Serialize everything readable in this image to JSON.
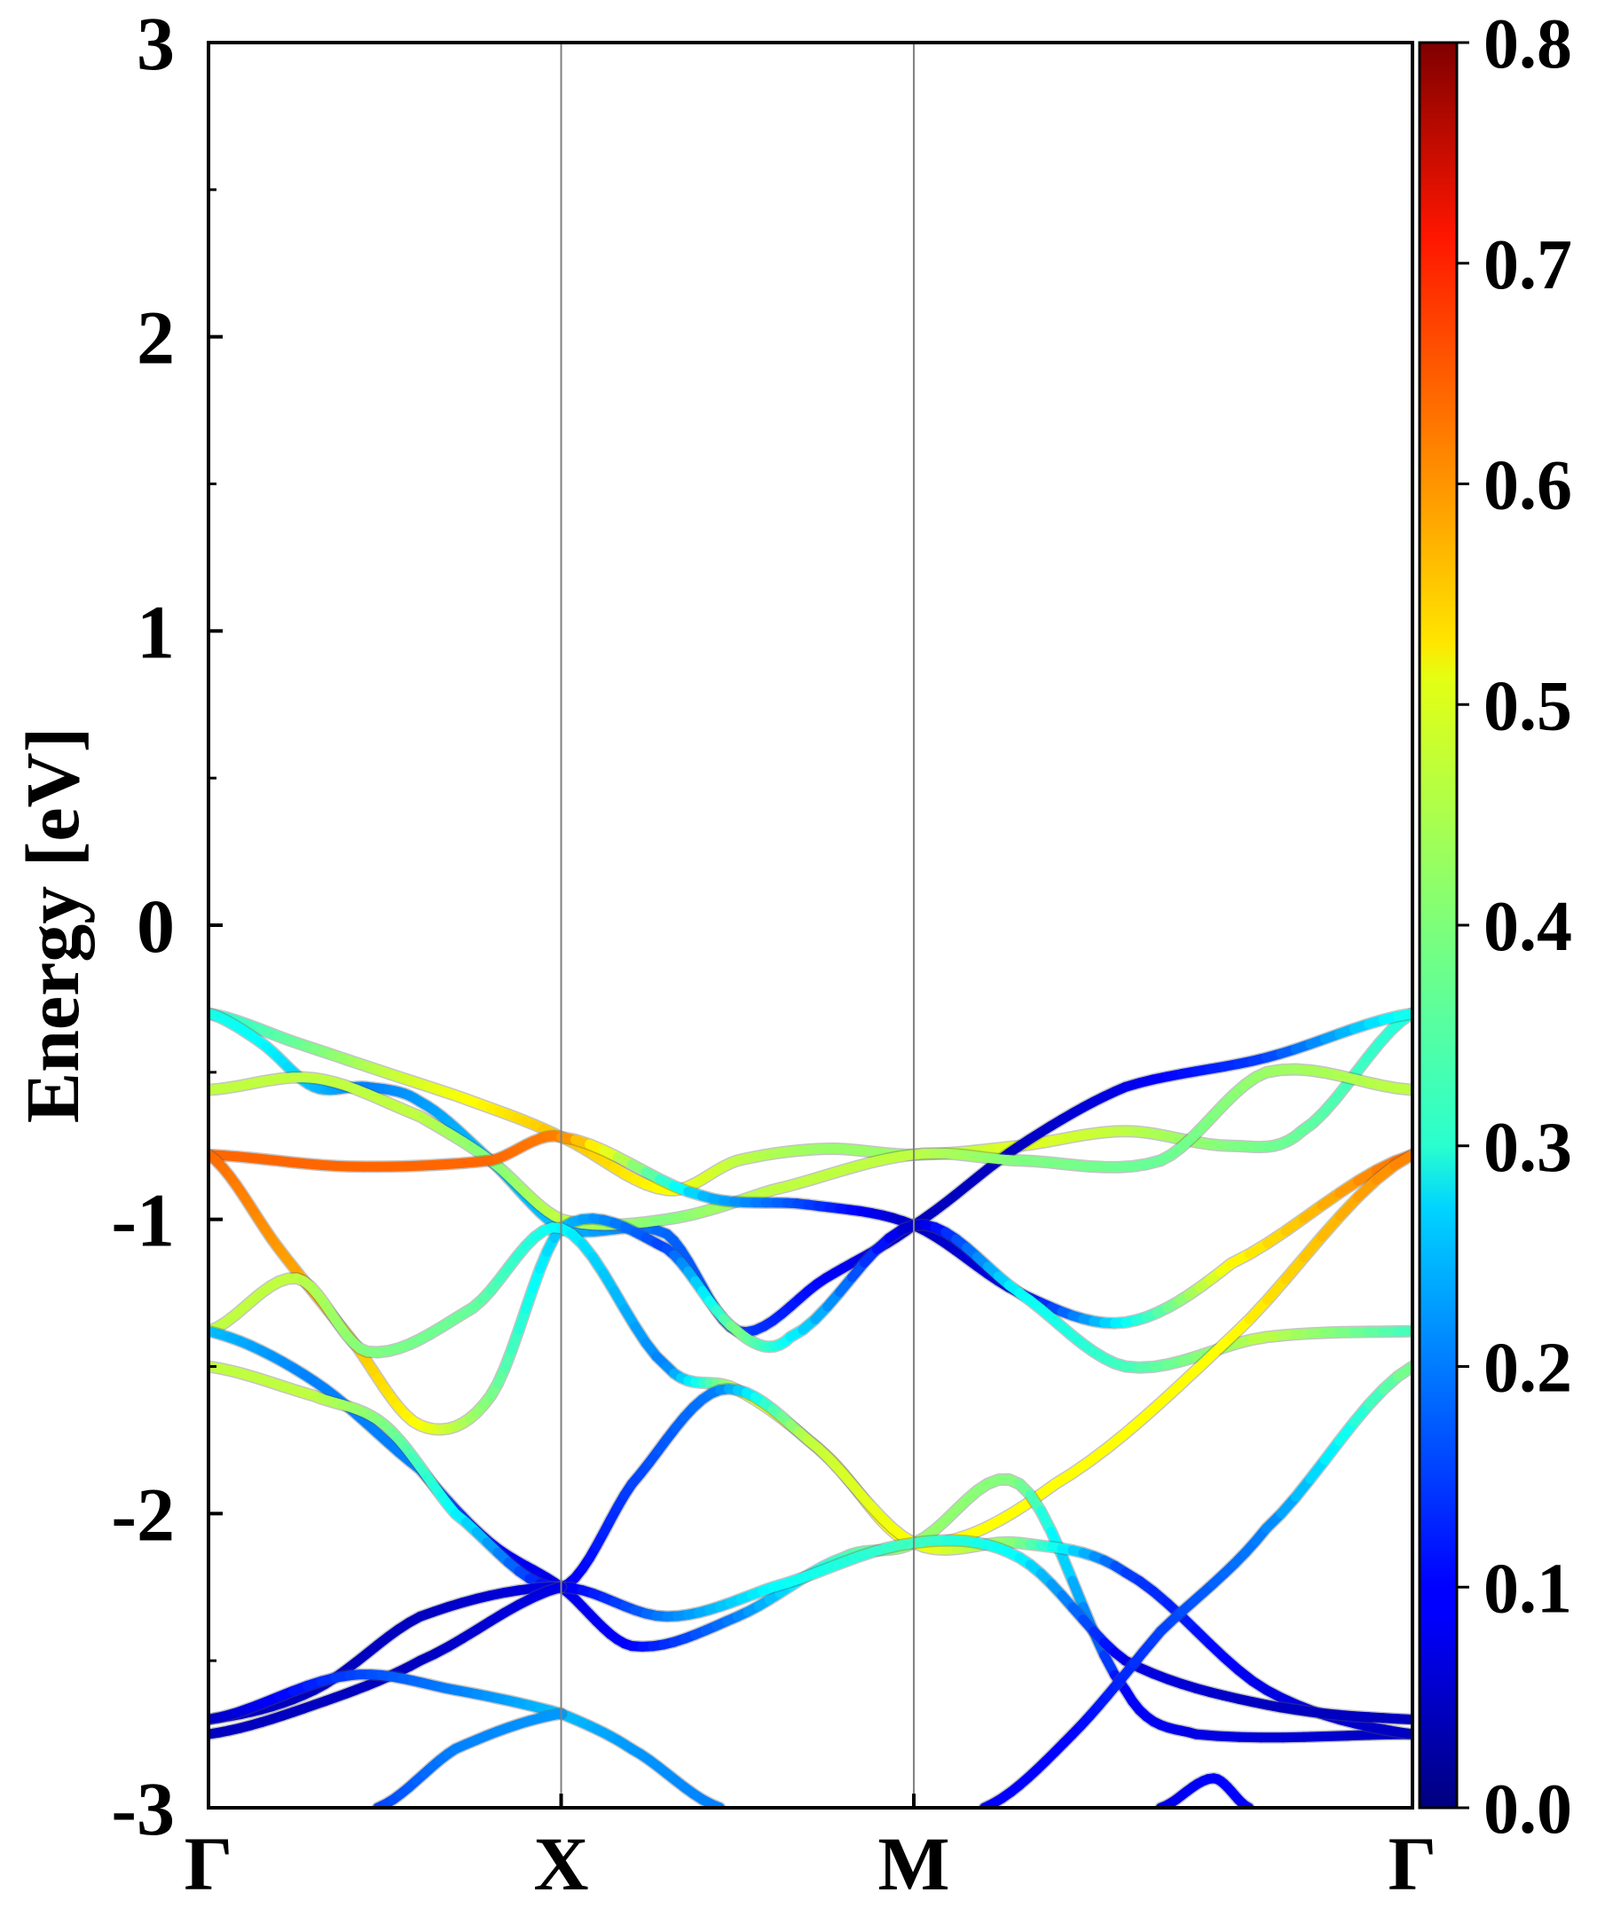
{
  "chart_data": {
    "type": "line",
    "title": "",
    "xlabel": "",
    "ylabel": "Energy [eV]",
    "ylim": [
      -3,
      3
    ],
    "xlim": [
      0,
      3.414
    ],
    "y_ticks": [
      3,
      2,
      1,
      0,
      -1,
      -2,
      -3
    ],
    "y_tick_labels": [
      "3",
      "2",
      "1",
      "0",
      "-1",
      "-2",
      "-3"
    ],
    "x_ticks": [
      {
        "label": "Γ",
        "x": 0
      },
      {
        "label": "X",
        "x": 1
      },
      {
        "label": "M",
        "x": 2
      },
      {
        "label": "Γ",
        "x": 3.414
      }
    ],
    "grid": "vertical lines at high-symmetry points",
    "colorbar": {
      "colormap": "jet",
      "range": [
        0,
        0.8
      ],
      "ticks": [
        "0.0",
        "0.1",
        "0.2",
        "0.3",
        "0.4",
        "0.5",
        "0.6",
        "0.7",
        "0.8"
      ],
      "tick_values": [
        0,
        0.1,
        0.2,
        0.3,
        0.4,
        0.5,
        0.6,
        0.7,
        0.8
      ],
      "placement": "right"
    },
    "series": [
      {
        "points": [
          [
            0,
            -0.3,
            0.32
          ],
          [
            0.25,
            -0.4,
            0.38
          ],
          [
            0.5,
            -0.5,
            0.45
          ],
          [
            0.75,
            -0.6,
            0.5
          ],
          [
            1,
            -0.72,
            0.55
          ],
          [
            1.3,
            -0.9,
            0.5
          ],
          [
            1.5,
            -0.8,
            0.45
          ],
          [
            1.75,
            -0.76,
            0.42
          ],
          [
            2,
            -0.78,
            0.42
          ],
          [
            2.3,
            -0.75,
            0.48
          ],
          [
            2.6,
            -0.7,
            0.45
          ],
          [
            2.9,
            -0.75,
            0.4
          ],
          [
            3.1,
            -0.7,
            0.38
          ],
          [
            3.414,
            -0.3,
            0.32
          ]
        ]
      },
      {
        "points": [
          [
            0,
            -0.3,
            0.32
          ],
          [
            0.15,
            -0.4,
            0.3
          ],
          [
            0.3,
            -0.55,
            0.25
          ],
          [
            0.45,
            -0.55,
            0.2
          ],
          [
            0.6,
            -0.6,
            0.22
          ],
          [
            0.8,
            -0.8,
            0.25
          ],
          [
            1,
            -1.03,
            0.25
          ],
          [
            1.3,
            -1.05,
            0.18
          ],
          [
            1.5,
            -1.38,
            0.15
          ],
          [
            1.75,
            -1.2,
            0.1
          ],
          [
            2,
            -1.02,
            0.05
          ],
          [
            2.3,
            -0.75,
            0.05
          ],
          [
            2.6,
            -0.55,
            0.08
          ],
          [
            3.0,
            -0.45,
            0.15
          ],
          [
            3.414,
            -0.3,
            0.32
          ]
        ]
      },
      {
        "points": [
          [
            0,
            -0.56,
            0.45
          ],
          [
            0.3,
            -0.52,
            0.45
          ],
          [
            0.6,
            -0.65,
            0.45
          ],
          [
            0.8,
            -0.8,
            0.4
          ],
          [
            1,
            -1.0,
            0.45
          ],
          [
            1.3,
            -1.0,
            0.4
          ],
          [
            1.6,
            -0.9,
            0.45
          ],
          [
            2,
            -0.78,
            0.45
          ],
          [
            2.3,
            -0.8,
            0.4
          ],
          [
            2.7,
            -0.8,
            0.38
          ],
          [
            3.0,
            -0.5,
            0.42
          ],
          [
            3.414,
            -0.56,
            0.45
          ]
        ]
      },
      {
        "points": [
          [
            0,
            -0.78,
            0.62
          ],
          [
            0.4,
            -0.82,
            0.62
          ],
          [
            0.8,
            -0.8,
            0.62
          ],
          [
            1,
            -0.72,
            0.6
          ],
          [
            1.4,
            -0.92,
            0.25
          ],
          [
            1.7,
            -0.95,
            0.15
          ],
          [
            2,
            -1.02,
            0.05
          ],
          [
            2.3,
            -1.25,
            0.08
          ],
          [
            2.6,
            -1.35,
            0.3
          ],
          [
            2.9,
            -1.15,
            0.5
          ],
          [
            3.414,
            -0.78,
            0.62
          ]
        ]
      },
      {
        "points": [
          [
            0,
            -0.78,
            0.62
          ],
          [
            0.2,
            -1.1,
            0.58
          ],
          [
            0.4,
            -1.4,
            0.55
          ],
          [
            0.6,
            -1.7,
            0.5
          ],
          [
            0.8,
            -1.6,
            0.4
          ],
          [
            1,
            -1.03,
            0.25
          ],
          [
            1.3,
            -1.1,
            0.15
          ],
          [
            1.5,
            -1.38,
            0.4
          ],
          [
            1.65,
            -1.4,
            0.3
          ],
          [
            2,
            -1.02,
            0.05
          ],
          [
            2.3,
            -1.25,
            0.3
          ],
          [
            2.6,
            -1.5,
            0.35
          ],
          [
            3.0,
            -1.4,
            0.45
          ],
          [
            3.414,
            -1.38,
            0.35
          ]
        ]
      },
      {
        "points": [
          [
            0,
            -1.38,
            0.45
          ],
          [
            0.25,
            -1.2,
            0.45
          ],
          [
            0.45,
            -1.45,
            0.4
          ],
          [
            0.75,
            -1.3,
            0.38
          ],
          [
            1,
            -1.03,
            0.3
          ],
          [
            1.3,
            -1.5,
            0.2
          ],
          [
            1.5,
            -1.58,
            0.45
          ],
          [
            1.75,
            -1.8,
            0.5
          ],
          [
            2,
            -2.1,
            0.5
          ],
          [
            2.4,
            -1.9,
            0.5
          ],
          [
            2.9,
            -1.4,
            0.5
          ],
          [
            3.414,
            -0.78,
            0.6
          ]
        ]
      },
      {
        "points": [
          [
            0,
            -1.38,
            0.25
          ],
          [
            0.3,
            -1.55,
            0.2
          ],
          [
            0.6,
            -1.85,
            0.2
          ],
          [
            0.8,
            -2.1,
            0.1
          ],
          [
            1,
            -2.25,
            0.08
          ],
          [
            1.2,
            -2.45,
            0.1
          ],
          [
            1.5,
            -2.35,
            0.2
          ],
          [
            1.8,
            -2.15,
            0.35
          ],
          [
            2,
            -2.1,
            0.42
          ],
          [
            2.3,
            -1.9,
            0.4
          ],
          [
            2.6,
            -2.6,
            0.1
          ],
          [
            2.8,
            -2.75,
            0.08
          ],
          [
            3.414,
            -2.75,
            0.05
          ]
        ]
      },
      {
        "points": [
          [
            0,
            -1.5,
            0.45
          ],
          [
            0.3,
            -1.6,
            0.45
          ],
          [
            0.5,
            -1.7,
            0.4
          ],
          [
            0.7,
            -2.0,
            0.3
          ],
          [
            1,
            -2.25,
            0.08
          ],
          [
            1.2,
            -1.9,
            0.15
          ],
          [
            1.45,
            -1.58,
            0.2
          ],
          [
            1.7,
            -1.75,
            0.45
          ],
          [
            2,
            -2.1,
            0.5
          ],
          [
            2.3,
            -2.1,
            0.4
          ],
          [
            2.6,
            -2.2,
            0.15
          ],
          [
            3.0,
            -2.6,
            0.08
          ],
          [
            3.414,
            -2.75,
            0.05
          ]
        ]
      },
      {
        "points": [
          [
            0,
            -2.7,
            0.05
          ],
          [
            0.3,
            -2.6,
            0.05
          ],
          [
            0.6,
            -2.35,
            0.05
          ],
          [
            1,
            -2.25,
            0.08
          ],
          [
            1.3,
            -2.35,
            0.2
          ],
          [
            1.6,
            -2.25,
            0.3
          ],
          [
            2,
            -2.1,
            0.35
          ],
          [
            2.3,
            -2.15,
            0.3
          ],
          [
            2.6,
            -2.5,
            0.08
          ],
          [
            3.0,
            -2.65,
            0.05
          ],
          [
            3.414,
            -2.7,
            0.05
          ]
        ]
      },
      {
        "points": [
          [
            0,
            -2.75,
            0.05
          ],
          [
            0.3,
            -2.65,
            0.05
          ],
          [
            0.6,
            -2.5,
            0.05
          ],
          [
            1,
            -2.25,
            0.08
          ]
        ]
      },
      {
        "points": [
          [
            0,
            -2.7,
            0.05
          ],
          [
            0.4,
            -2.55,
            0.15
          ],
          [
            0.7,
            -2.6,
            0.2
          ],
          [
            1,
            -2.68,
            0.25
          ],
          [
            1.2,
            -2.8,
            0.22
          ],
          [
            1.45,
            -3.0,
            0.2
          ]
        ]
      },
      {
        "points": [
          [
            0.48,
            -3.0,
            0.15
          ],
          [
            0.7,
            -2.8,
            0.2
          ],
          [
            1,
            -2.68,
            0.22
          ]
        ]
      },
      {
        "points": [
          [
            2.2,
            -3.0,
            0.1
          ],
          [
            2.45,
            -2.75,
            0.1
          ],
          [
            2.7,
            -2.4,
            0.15
          ],
          [
            3.0,
            -2.05,
            0.2
          ],
          [
            3.414,
            -1.5,
            0.4
          ]
        ]
      },
      {
        "points": [
          [
            2.7,
            -3.0,
            0.08
          ],
          [
            2.85,
            -2.9,
            0.1
          ],
          [
            2.95,
            -3.0,
            0.1
          ]
        ]
      }
    ]
  }
}
